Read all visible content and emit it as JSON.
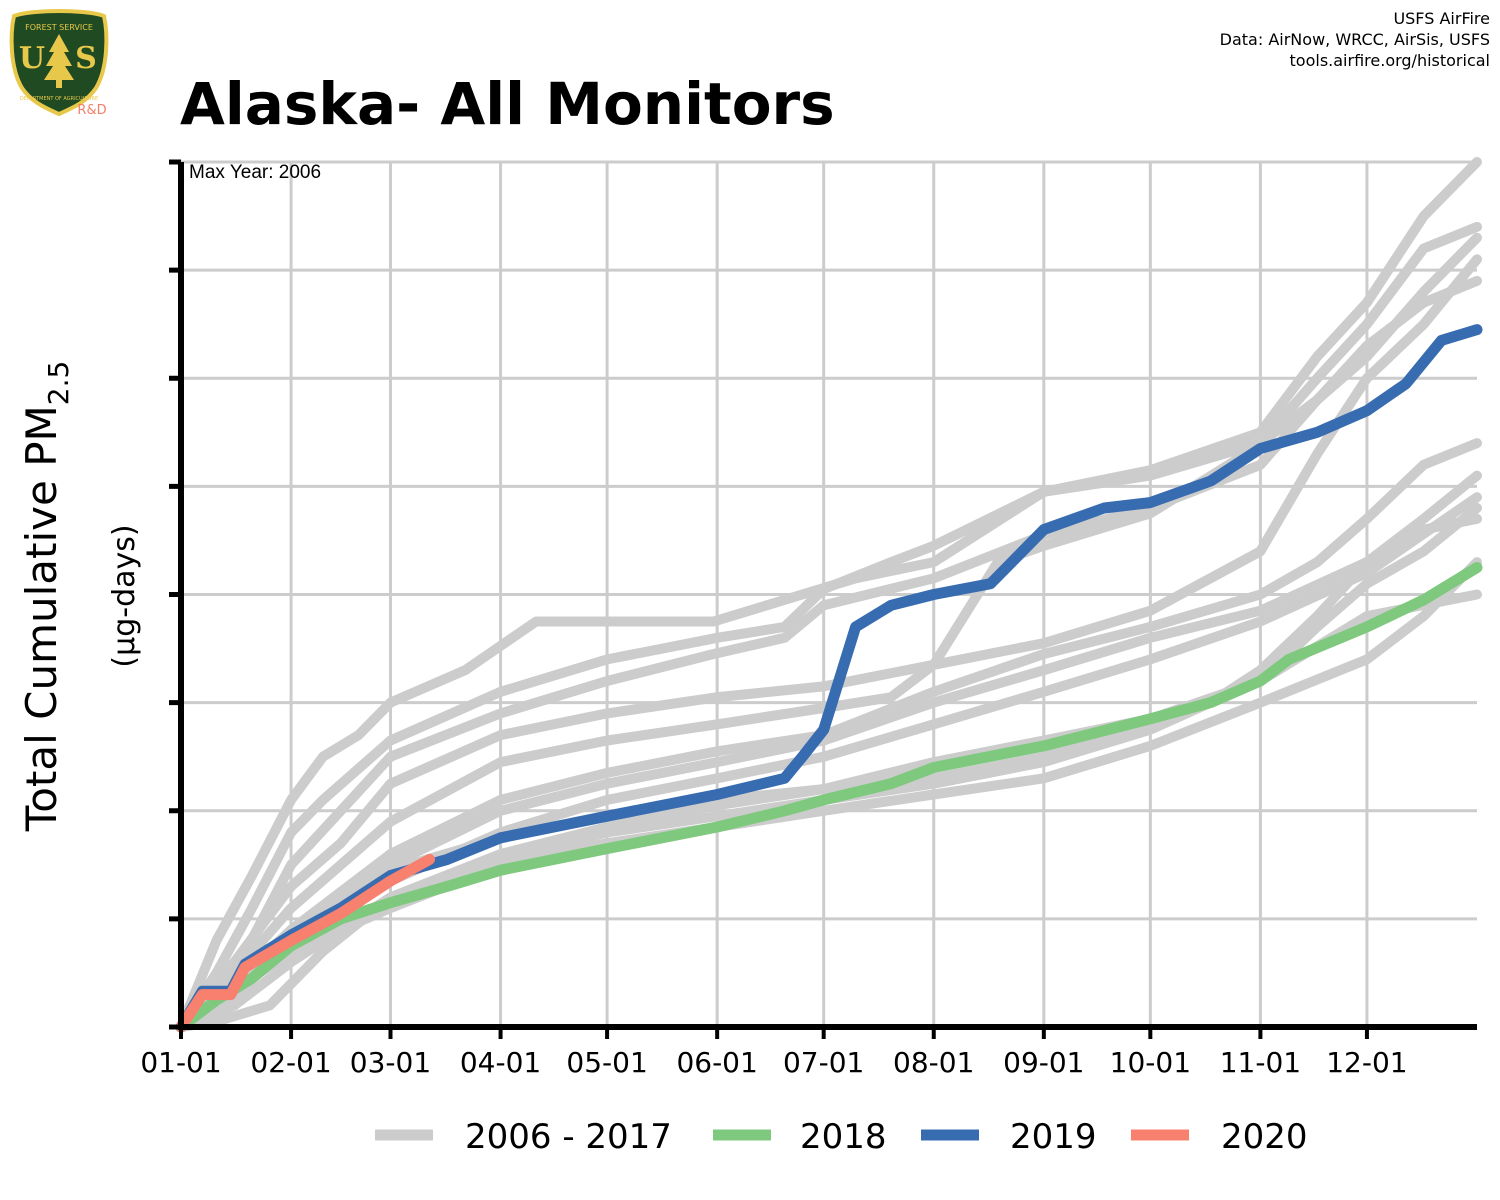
{
  "header": {
    "title": "Alaska- All Monitors",
    "credits": [
      "USFS AirFire",
      "Data: AirNow, WRCC, AirSis, USFS",
      "tools.airfire.org/historical"
    ]
  },
  "logo": {
    "text_top": "FOREST SERVICE",
    "letters_left": "U",
    "letters_right": "S",
    "text_bottom": "DEPARTMENT OF AGRICULTURE",
    "rd_label": "R&D",
    "colors": {
      "shield": "#1f4a22",
      "trim": "#e8c84a",
      "tree": "#e8c84a",
      "rd": "#f47f6b"
    },
    "icon": "forest-service-shield-icon"
  },
  "chart_data": {
    "type": "line",
    "annotation": "Max Year: 2006",
    "ylabel": "Total Cumulative PM",
    "ylabel_subscript": "2.5",
    "yunit": "(µg-days)",
    "xlabels": [
      "01-01",
      "02-01",
      "03-01",
      "04-01",
      "05-01",
      "06-01",
      "07-01",
      "08-01",
      "09-01",
      "10-01",
      "11-01",
      "12-01"
    ],
    "x_tick_days": [
      0,
      31,
      59,
      90,
      120,
      151,
      181,
      212,
      243,
      273,
      304,
      334
    ],
    "x_range": [
      0,
      365
    ],
    "y_range": [
      0,
      8
    ],
    "y_ticks": [
      0,
      1,
      2,
      3,
      4,
      5,
      6,
      7,
      8
    ],
    "y_tick_labels_shown": false,
    "grid": true,
    "legend_placement": "bottom",
    "legend": [
      {
        "label": "2006 - 2017",
        "color": "#cccccc"
      },
      {
        "label": "2018",
        "color": "#7fc97f"
      },
      {
        "label": "2019",
        "color": "#386cb0"
      },
      {
        "label": "2020",
        "color": "#f8806f"
      }
    ],
    "series": [
      {
        "group": "2006 - 2017",
        "color": "#cccccc",
        "points": [
          [
            0,
            0
          ],
          [
            10,
            0.8
          ],
          [
            20,
            1.4
          ],
          [
            31,
            2.1
          ],
          [
            40,
            2.5
          ],
          [
            50,
            2.7
          ],
          [
            59,
            3.0
          ],
          [
            80,
            3.3
          ],
          [
            100,
            3.75
          ],
          [
            120,
            3.75
          ],
          [
            150,
            3.75
          ],
          [
            170,
            3.95
          ],
          [
            190,
            4.15
          ],
          [
            212,
            4.3
          ],
          [
            243,
            4.95
          ],
          [
            273,
            5.15
          ],
          [
            304,
            5.5
          ],
          [
            320,
            6.2
          ],
          [
            334,
            6.7
          ],
          [
            350,
            7.5
          ],
          [
            365,
            8.0
          ]
        ]
      },
      {
        "group": "2006 - 2017",
        "color": "#cccccc",
        "points": [
          [
            0,
            0
          ],
          [
            10,
            0.5
          ],
          [
            20,
            1.1
          ],
          [
            31,
            1.8
          ],
          [
            40,
            2.1
          ],
          [
            59,
            2.65
          ],
          [
            90,
            3.1
          ],
          [
            120,
            3.4
          ],
          [
            151,
            3.6
          ],
          [
            170,
            3.7
          ],
          [
            181,
            4.05
          ],
          [
            200,
            4.3
          ],
          [
            212,
            4.45
          ],
          [
            243,
            4.95
          ],
          [
            273,
            5.1
          ],
          [
            304,
            5.4
          ],
          [
            320,
            6.0
          ],
          [
            334,
            6.5
          ],
          [
            350,
            7.2
          ],
          [
            365,
            7.4
          ]
        ]
      },
      {
        "group": "2006 - 2017",
        "color": "#cccccc",
        "points": [
          [
            0,
            0
          ],
          [
            15,
            0.5
          ],
          [
            31,
            1.5
          ],
          [
            45,
            2.0
          ],
          [
            59,
            2.5
          ],
          [
            90,
            2.9
          ],
          [
            120,
            3.2
          ],
          [
            150,
            3.45
          ],
          [
            170,
            3.6
          ],
          [
            181,
            3.9
          ],
          [
            212,
            4.15
          ],
          [
            243,
            4.55
          ],
          [
            273,
            4.8
          ],
          [
            304,
            5.2
          ],
          [
            320,
            5.8
          ],
          [
            334,
            6.2
          ],
          [
            350,
            6.8
          ],
          [
            365,
            7.3
          ]
        ]
      },
      {
        "group": "2006 - 2017",
        "color": "#cccccc",
        "points": [
          [
            0,
            0
          ],
          [
            15,
            0.6
          ],
          [
            31,
            1.3
          ],
          [
            45,
            1.7
          ],
          [
            59,
            2.25
          ],
          [
            90,
            2.7
          ],
          [
            120,
            2.9
          ],
          [
            151,
            3.05
          ],
          [
            181,
            3.15
          ],
          [
            212,
            3.35
          ],
          [
            243,
            3.55
          ],
          [
            273,
            3.85
          ],
          [
            304,
            4.4
          ],
          [
            320,
            5.3
          ],
          [
            334,
            6.0
          ],
          [
            350,
            6.5
          ],
          [
            365,
            7.1
          ]
        ]
      },
      {
        "group": "2006 - 2017",
        "color": "#cccccc",
        "points": [
          [
            0,
            0
          ],
          [
            15,
            0.5
          ],
          [
            31,
            1.1
          ],
          [
            45,
            1.5
          ],
          [
            59,
            1.9
          ],
          [
            90,
            2.45
          ],
          [
            120,
            2.65
          ],
          [
            151,
            2.8
          ],
          [
            181,
            2.95
          ],
          [
            200,
            3.05
          ],
          [
            212,
            3.35
          ],
          [
            230,
            4.3
          ],
          [
            243,
            4.45
          ],
          [
            273,
            4.75
          ],
          [
            300,
            5.3
          ],
          [
            320,
            5.8
          ],
          [
            334,
            6.3
          ],
          [
            350,
            6.7
          ],
          [
            365,
            6.9
          ]
        ]
      },
      {
        "group": "2006 - 2017",
        "color": "#cccccc",
        "points": [
          [
            0,
            0
          ],
          [
            15,
            0.4
          ],
          [
            31,
            0.9
          ],
          [
            59,
            1.6
          ],
          [
            90,
            2.1
          ],
          [
            120,
            2.35
          ],
          [
            151,
            2.55
          ],
          [
            181,
            2.7
          ],
          [
            212,
            3.1
          ],
          [
            243,
            3.45
          ],
          [
            273,
            3.7
          ],
          [
            304,
            4.0
          ],
          [
            320,
            4.3
          ],
          [
            334,
            4.7
          ],
          [
            350,
            5.2
          ],
          [
            365,
            5.4
          ]
        ]
      },
      {
        "group": "2006 - 2017",
        "color": "#cccccc",
        "points": [
          [
            0,
            0
          ],
          [
            15,
            0.35
          ],
          [
            31,
            0.8
          ],
          [
            59,
            1.5
          ],
          [
            90,
            2.0
          ],
          [
            120,
            2.25
          ],
          [
            151,
            2.45
          ],
          [
            181,
            2.65
          ],
          [
            212,
            3.0
          ],
          [
            243,
            3.3
          ],
          [
            273,
            3.6
          ],
          [
            304,
            3.85
          ],
          [
            334,
            4.3
          ],
          [
            350,
            4.7
          ],
          [
            365,
            5.1
          ]
        ]
      },
      {
        "group": "2006 - 2017",
        "color": "#cccccc",
        "points": [
          [
            0,
            0
          ],
          [
            15,
            0.3
          ],
          [
            31,
            0.75
          ],
          [
            59,
            1.35
          ],
          [
            90,
            1.8
          ],
          [
            120,
            2.1
          ],
          [
            151,
            2.3
          ],
          [
            181,
            2.5
          ],
          [
            212,
            2.8
          ],
          [
            243,
            3.1
          ],
          [
            273,
            3.4
          ],
          [
            304,
            3.75
          ],
          [
            334,
            4.2
          ],
          [
            365,
            4.9
          ]
        ]
      },
      {
        "group": "2006 - 2017",
        "color": "#cccccc",
        "points": [
          [
            0,
            0
          ],
          [
            15,
            0.2
          ],
          [
            31,
            0.6
          ],
          [
            59,
            1.2
          ],
          [
            90,
            1.6
          ],
          [
            120,
            1.85
          ],
          [
            151,
            2.05
          ],
          [
            181,
            2.2
          ],
          [
            212,
            2.45
          ],
          [
            243,
            2.65
          ],
          [
            273,
            2.85
          ],
          [
            304,
            3.2
          ],
          [
            320,
            3.7
          ],
          [
            334,
            4.1
          ],
          [
            350,
            4.4
          ],
          [
            365,
            4.8
          ]
        ]
      },
      {
        "group": "2006 - 2017",
        "color": "#cccccc",
        "points": [
          [
            0,
            0
          ],
          [
            10,
            0.05
          ],
          [
            25,
            0.2
          ],
          [
            31,
            0.4
          ],
          [
            40,
            0.7
          ],
          [
            59,
            1.2
          ],
          [
            90,
            1.55
          ],
          [
            120,
            1.8
          ],
          [
            151,
            1.95
          ],
          [
            181,
            2.1
          ],
          [
            212,
            2.25
          ],
          [
            243,
            2.45
          ],
          [
            273,
            2.75
          ],
          [
            290,
            3.0
          ],
          [
            304,
            3.3
          ],
          [
            320,
            3.8
          ],
          [
            334,
            4.3
          ],
          [
            350,
            4.6
          ],
          [
            365,
            4.7
          ]
        ]
      },
      {
        "group": "2006 - 2017",
        "color": "#cccccc",
        "points": [
          [
            0,
            0
          ],
          [
            31,
            0.8
          ],
          [
            59,
            1.45
          ],
          [
            90,
            1.75
          ],
          [
            120,
            1.95
          ],
          [
            151,
            2.1
          ],
          [
            181,
            2.2
          ],
          [
            212,
            2.3
          ],
          [
            243,
            2.5
          ],
          [
            273,
            2.8
          ],
          [
            304,
            3.2
          ],
          [
            334,
            3.8
          ],
          [
            365,
            4.0
          ]
        ]
      },
      {
        "group": "2006 - 2017",
        "color": "#cccccc",
        "points": [
          [
            0,
            0
          ],
          [
            31,
            0.7
          ],
          [
            59,
            1.1
          ],
          [
            90,
            1.5
          ],
          [
            120,
            1.7
          ],
          [
            151,
            1.85
          ],
          [
            181,
            2.0
          ],
          [
            212,
            2.15
          ],
          [
            243,
            2.3
          ],
          [
            273,
            2.6
          ],
          [
            304,
            3.0
          ],
          [
            334,
            3.4
          ],
          [
            350,
            3.8
          ],
          [
            365,
            4.3
          ]
        ]
      },
      {
        "group": "2018",
        "color": "#7fc97f",
        "points": [
          [
            0,
            0
          ],
          [
            10,
            0.25
          ],
          [
            20,
            0.45
          ],
          [
            31,
            0.75
          ],
          [
            45,
            1.0
          ],
          [
            59,
            1.15
          ],
          [
            75,
            1.3
          ],
          [
            90,
            1.45
          ],
          [
            120,
            1.65
          ],
          [
            151,
            1.85
          ],
          [
            170,
            2.0
          ],
          [
            181,
            2.1
          ],
          [
            200,
            2.25
          ],
          [
            212,
            2.4
          ],
          [
            243,
            2.6
          ],
          [
            273,
            2.85
          ],
          [
            290,
            3.0
          ],
          [
            304,
            3.2
          ],
          [
            312,
            3.4
          ],
          [
            334,
            3.7
          ],
          [
            350,
            3.95
          ],
          [
            365,
            4.25
          ]
        ]
      },
      {
        "group": "2019",
        "color": "#386cb0",
        "points": [
          [
            0,
            0
          ],
          [
            6,
            0.33
          ],
          [
            14,
            0.33
          ],
          [
            18,
            0.58
          ],
          [
            31,
            0.85
          ],
          [
            45,
            1.1
          ],
          [
            59,
            1.4
          ],
          [
            75,
            1.55
          ],
          [
            90,
            1.75
          ],
          [
            120,
            1.95
          ],
          [
            151,
            2.15
          ],
          [
            170,
            2.3
          ],
          [
            175,
            2.5
          ],
          [
            181,
            2.75
          ],
          [
            190,
            3.7
          ],
          [
            200,
            3.9
          ],
          [
            212,
            4.0
          ],
          [
            228,
            4.1
          ],
          [
            243,
            4.6
          ],
          [
            260,
            4.8
          ],
          [
            273,
            4.85
          ],
          [
            290,
            5.05
          ],
          [
            304,
            5.35
          ],
          [
            320,
            5.5
          ],
          [
            334,
            5.7
          ],
          [
            345,
            5.95
          ],
          [
            355,
            6.35
          ],
          [
            365,
            6.45
          ]
        ]
      },
      {
        "group": "2020",
        "color": "#f8806f",
        "points": [
          [
            0,
            0
          ],
          [
            6,
            0.3
          ],
          [
            14,
            0.3
          ],
          [
            18,
            0.55
          ],
          [
            31,
            0.8
          ],
          [
            45,
            1.05
          ],
          [
            59,
            1.35
          ],
          [
            70,
            1.55
          ]
        ]
      }
    ]
  }
}
